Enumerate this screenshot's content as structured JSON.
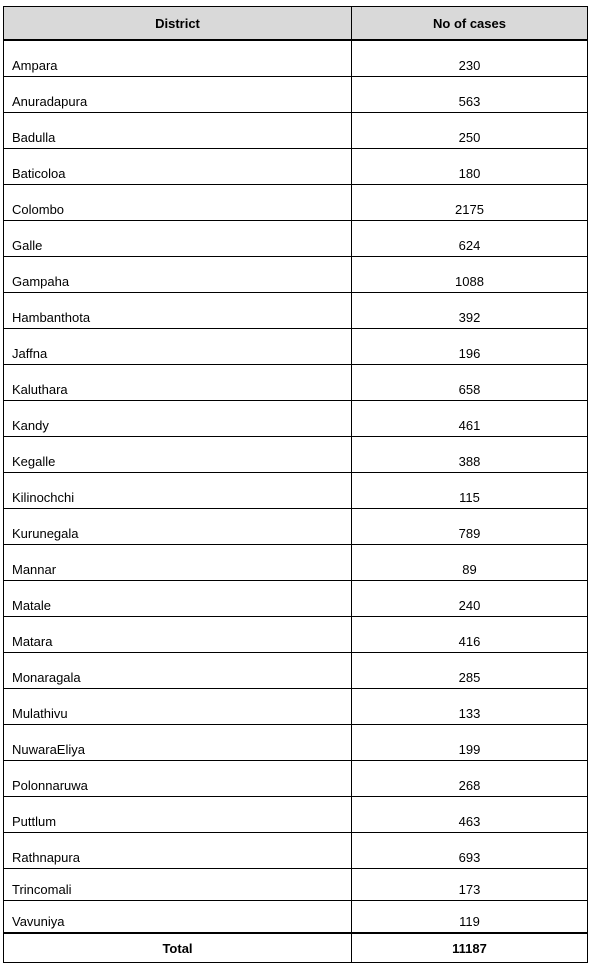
{
  "table": {
    "headers": {
      "district": "District",
      "cases": "No of cases"
    },
    "rows": [
      {
        "district": "Ampara",
        "cases": "230"
      },
      {
        "district": "Anuradapura",
        "cases": "563"
      },
      {
        "district": "Badulla",
        "cases": "250"
      },
      {
        "district": "Baticoloa",
        "cases": "180"
      },
      {
        "district": "Colombo",
        "cases": "2175"
      },
      {
        "district": "Galle",
        "cases": "624"
      },
      {
        "district": "Gampaha",
        "cases": "1088"
      },
      {
        "district": "Hambanthota",
        "cases": "392"
      },
      {
        "district": "Jaffna",
        "cases": "196"
      },
      {
        "district": "Kaluthara",
        "cases": "658"
      },
      {
        "district": "Kandy",
        "cases": "461"
      },
      {
        "district": "Kegalle",
        "cases": "388"
      },
      {
        "district": "Kilinochchi",
        "cases": "115"
      },
      {
        "district": "Kurunegala",
        "cases": "789"
      },
      {
        "district": "Mannar",
        "cases": "89"
      },
      {
        "district": "Matale",
        "cases": "240"
      },
      {
        "district": "Matara",
        "cases": "416"
      },
      {
        "district": "Monaragala",
        "cases": "285"
      },
      {
        "district": "Mulathivu",
        "cases": "133"
      },
      {
        "district": "NuwaraEliya",
        "cases": "199"
      },
      {
        "district": "Polonnaruwa",
        "cases": "268"
      },
      {
        "district": "Puttlum",
        "cases": "463"
      },
      {
        "district": "Rathnapura",
        "cases": "693"
      },
      {
        "district": "Trincomali",
        "cases": "173"
      },
      {
        "district": "Vavuniya",
        "cases": "119"
      }
    ],
    "total": {
      "label": "Total",
      "value": "11187"
    }
  },
  "colors": {
    "header_bg": "#d9d9d9",
    "border": "#000000",
    "text": "#000000"
  }
}
